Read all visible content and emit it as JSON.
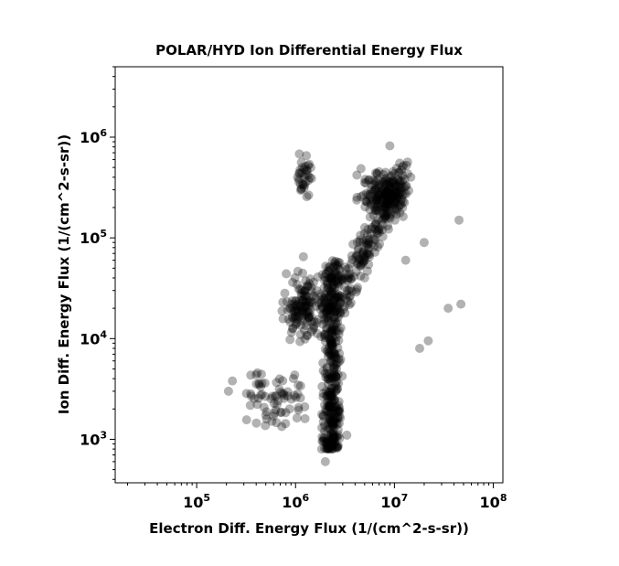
{
  "chart_data": {
    "type": "scatter",
    "title": "POLAR/HYD  Ion Differential Energy Flux",
    "xlabel": "Electron Diff. Energy Flux (1/(cm^2-s-sr))",
    "ylabel": "Ion Diff. Energy Flux (1/(cm^2-s-sr))",
    "x_scale": "log",
    "y_scale": "log",
    "xlim": [
      15000,
      125000000
    ],
    "ylim": [
      370,
      5000000
    ],
    "x_ticks": [
      {
        "base": "10",
        "exp": "5"
      },
      {
        "base": "10",
        "exp": "6"
      },
      {
        "base": "10",
        "exp": "7"
      },
      {
        "base": "10",
        "exp": "8"
      }
    ],
    "y_ticks": [
      {
        "base": "10",
        "exp": "3"
      },
      {
        "base": "10",
        "exp": "4"
      },
      {
        "base": "10",
        "exp": "5"
      },
      {
        "base": "10",
        "exp": "6"
      }
    ],
    "x_tick_values": [
      100000,
      1000000,
      10000000,
      100000000
    ],
    "y_tick_values": [
      1000,
      10000,
      100000,
      1000000
    ],
    "grid": false,
    "marker_color": "#000000",
    "marker_opacity": 0.3,
    "clusters": [
      {
        "name": "main-column",
        "x_range": [
          1800000,
          3000000
        ],
        "y_range": [
          800,
          60000
        ]
      },
      {
        "name": "diagonal-band",
        "x_range": [
          2500000,
          13000000
        ],
        "y_range": [
          20000,
          450000
        ]
      },
      {
        "name": "upper-right-core",
        "x_range": [
          4000000,
          14000000
        ],
        "y_range": [
          150000,
          500000
        ]
      },
      {
        "name": "left-group",
        "x_range": [
          700000,
          2000000
        ],
        "y_range": [
          8000,
          50000
        ]
      },
      {
        "name": "high-ion-group",
        "x_range": [
          1000000,
          1500000
        ],
        "y_range": [
          200000,
          880000
        ]
      },
      {
        "name": "low-left-scatter",
        "x_range": [
          250000,
          1500000
        ],
        "y_range": [
          1200,
          5000
        ]
      }
    ],
    "outliers": [
      {
        "x": 9000000,
        "y": 820000
      },
      {
        "x": 45000000,
        "y": 150000
      },
      {
        "x": 35000000,
        "y": 20000
      },
      {
        "x": 47000000,
        "y": 22000
      },
      {
        "x": 22000000,
        "y": 9500
      },
      {
        "x": 18000000,
        "y": 8000
      },
      {
        "x": 3300000,
        "y": 1100
      },
      {
        "x": 2000000,
        "y": 600
      },
      {
        "x": 230000,
        "y": 3800
      },
      {
        "x": 210000,
        "y": 3000
      },
      {
        "x": 1200000,
        "y": 65000
      },
      {
        "x": 20000000,
        "y": 90000
      },
      {
        "x": 13000000,
        "y": 60000
      }
    ]
  }
}
